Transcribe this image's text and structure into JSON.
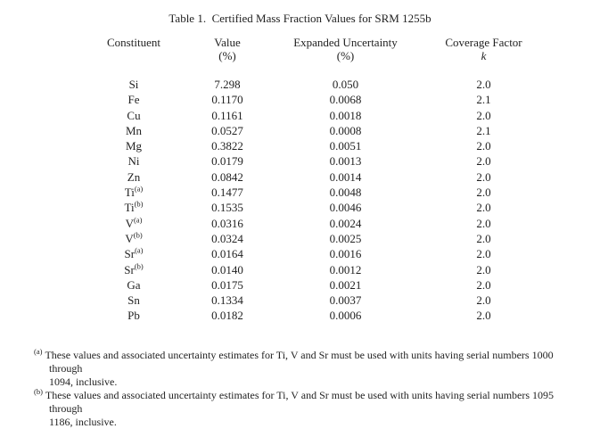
{
  "title": "Table 1.  Certified Mass Fraction Values for SRM 1255b",
  "table": {
    "headers": {
      "constituent": "Constituent",
      "value_line1": "Value",
      "value_unit": "(%)",
      "uncertainty_line1": "Expanded Uncertainty",
      "uncertainty_unit": "(%)",
      "coverage_line1": "Coverage Factor",
      "coverage_symbol": "k"
    },
    "rows": [
      {
        "constituent": "Si",
        "sup": "",
        "value": "7.298",
        "uncertainty": "0.050",
        "k": "2.0"
      },
      {
        "constituent": "Fe",
        "sup": "",
        "value": "0.1170",
        "uncertainty": "0.0068",
        "k": "2.1"
      },
      {
        "constituent": "Cu",
        "sup": "",
        "value": "0.1161",
        "uncertainty": "0.0018",
        "k": "2.0"
      },
      {
        "constituent": "Mn",
        "sup": "",
        "value": "0.0527",
        "uncertainty": "0.0008",
        "k": "2.1"
      },
      {
        "constituent": "Mg",
        "sup": "",
        "value": "0.3822",
        "uncertainty": "0.0051",
        "k": "2.0"
      },
      {
        "constituent": "Ni",
        "sup": "",
        "value": "0.0179",
        "uncertainty": "0.0013",
        "k": "2.0"
      },
      {
        "constituent": "Zn",
        "sup": "",
        "value": "0.0842",
        "uncertainty": "0.0014",
        "k": "2.0"
      },
      {
        "constituent": "Ti",
        "sup": "(a)",
        "value": "0.1477",
        "uncertainty": "0.0048",
        "k": "2.0"
      },
      {
        "constituent": "Ti",
        "sup": "(b)",
        "value": "0.1535",
        "uncertainty": "0.0046",
        "k": "2.0"
      },
      {
        "constituent": "V",
        "sup": "(a)",
        "value": "0.0316",
        "uncertainty": "0.0024",
        "k": "2.0"
      },
      {
        "constituent": "V",
        "sup": "(b)",
        "value": "0.0324",
        "uncertainty": "0.0025",
        "k": "2.0"
      },
      {
        "constituent": "Sr",
        "sup": "(a)",
        "value": "0.0164",
        "uncertainty": "0.0016",
        "k": "2.0"
      },
      {
        "constituent": "Sr",
        "sup": "(b)",
        "value": "0.0140",
        "uncertainty": "0.0012",
        "k": "2.0"
      },
      {
        "constituent": "Ga",
        "sup": "",
        "value": "0.0175",
        "uncertainty": "0.0021",
        "k": "2.0"
      },
      {
        "constituent": "Sn",
        "sup": "",
        "value": "0.1334",
        "uncertainty": "0.0037",
        "k": "2.0"
      },
      {
        "constituent": "Pb",
        "sup": "",
        "value": "0.0182",
        "uncertainty": "0.0006",
        "k": "2.0"
      }
    ]
  },
  "footnotes": [
    {
      "marker": "(a)",
      "line1": "These values and associated uncertainty estimates for Ti, V and Sr must be used with units having serial numbers 1000 through",
      "line2": "1094, inclusive."
    },
    {
      "marker": "(b)",
      "line1": "These values and associated uncertainty estimates for Ti, V and Sr must be used with units having serial numbers 1095 through",
      "line2": "1186, inclusive."
    }
  ]
}
